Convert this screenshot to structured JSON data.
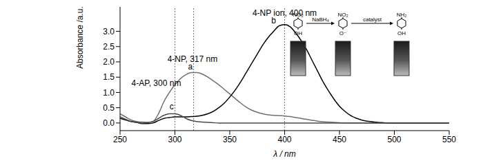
{
  "chart_data": {
    "type": "line",
    "x_label": "λ / nm",
    "y_label": "Absorbance /a.u.",
    "x": [
      250,
      255,
      260,
      265,
      270,
      275,
      280,
      285,
      290,
      295,
      300,
      305,
      310,
      315,
      320,
      325,
      330,
      335,
      340,
      345,
      350,
      355,
      360,
      365,
      370,
      375,
      380,
      385,
      390,
      395,
      400,
      405,
      410,
      415,
      420,
      425,
      430,
      435,
      440,
      445,
      450,
      455,
      460,
      465,
      470,
      475,
      480,
      485,
      490,
      495,
      500,
      505,
      510,
      515,
      520,
      525,
      530,
      535,
      540,
      545,
      550
    ],
    "series": [
      {
        "name": "a",
        "color": "#6e6e6e",
        "values": [
          0.3,
          0.2,
          0.1,
          0.05,
          0.03,
          0.02,
          0.05,
          0.3,
          0.7,
          1.0,
          1.25,
          1.45,
          1.58,
          1.65,
          1.65,
          1.6,
          1.5,
          1.38,
          1.25,
          1.1,
          0.95,
          0.8,
          0.65,
          0.52,
          0.42,
          0.35,
          0.3,
          0.27,
          0.25,
          0.24,
          0.23,
          0.21,
          0.18,
          0.15,
          0.12,
          0.09,
          0.06,
          0.04,
          0.03,
          0.02,
          0.01,
          0,
          0,
          0,
          0,
          0,
          0,
          0,
          0,
          0,
          0,
          0,
          0,
          0,
          0,
          0,
          0,
          0,
          0,
          0,
          0
        ]
      },
      {
        "name": "b",
        "color": "#000000",
        "values": [
          0.15,
          0.1,
          0.05,
          0.02,
          -0.02,
          -0.02,
          0.0,
          0.08,
          0.15,
          0.18,
          0.2,
          0.2,
          0.2,
          0.21,
          0.22,
          0.25,
          0.3,
          0.38,
          0.5,
          0.65,
          0.85,
          1.08,
          1.35,
          1.65,
          1.95,
          2.25,
          2.55,
          2.8,
          3.0,
          3.18,
          3.22,
          3.15,
          2.95,
          2.7,
          2.4,
          2.05,
          1.7,
          1.35,
          1.05,
          0.78,
          0.55,
          0.38,
          0.25,
          0.16,
          0.1,
          0.06,
          0.04,
          0.02,
          0.01,
          0,
          0,
          0,
          0,
          0,
          0,
          0,
          0,
          0,
          0,
          0,
          0
        ]
      },
      {
        "name": "c",
        "color": "#4a4a4a",
        "values": [
          0.2,
          0.12,
          0.05,
          0.02,
          0.0,
          0.01,
          0.05,
          0.15,
          0.25,
          0.3,
          0.3,
          0.25,
          0.15,
          0.08,
          0.05,
          0.03,
          0.02,
          0.01,
          0,
          0,
          0,
          0,
          0,
          0,
          0,
          0,
          0,
          0,
          0,
          0,
          0,
          0,
          0,
          0,
          0,
          0,
          0,
          0,
          0,
          0,
          0,
          0,
          0,
          0,
          0,
          0,
          0,
          0,
          0,
          0,
          0,
          0,
          0,
          0,
          0,
          0,
          0,
          0,
          0,
          0,
          0
        ]
      }
    ],
    "xlim": [
      250,
      550
    ],
    "xticks": [
      250,
      300,
      350,
      400,
      450,
      500,
      550
    ],
    "ylim": [
      -0.25,
      3.8
    ],
    "yticks": [
      {
        "value": 0,
        "label": "0.0"
      },
      {
        "value": 0.5,
        "label": "0.5"
      },
      {
        "value": 1,
        "label": "1.0"
      },
      {
        "value": 1.5,
        "label": "1.5"
      },
      {
        "value": 2,
        "label": "2.0"
      },
      {
        "value": 2.5,
        "label": "2.5"
      },
      {
        "value": 3,
        "label": "3.0"
      }
    ],
    "reference_lines": [
      300,
      317,
      400
    ],
    "annotations": [
      {
        "text": "4-NP ion, 400 nm",
        "x": 400,
        "y": 3.6
      },
      {
        "text": "b",
        "x": 390,
        "y": 3.35
      },
      {
        "text": "4-NP, 317 nm",
        "x": 316,
        "y": 2.1
      },
      {
        "text": "a",
        "x": 314,
        "y": 1.85
      },
      {
        "text": "4-AP, 300 nm",
        "x": 283,
        "y": 1.3
      },
      {
        "text": "c",
        "x": 297,
        "y": 0.55
      }
    ],
    "scheme": {
      "reagents": [
        "NaBH₄",
        "catalyst"
      ],
      "molecules": [
        {
          "top": "NO₂",
          "bottom": "OH"
        },
        {
          "top": "NO₂",
          "bottom": "O⁻"
        },
        {
          "top": "NH₂",
          "bottom": "OH"
        }
      ]
    },
    "grid": false
  }
}
